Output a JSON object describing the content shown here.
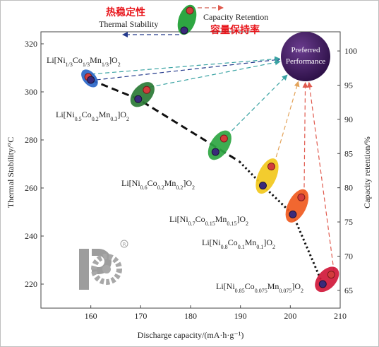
{
  "chart_data": {
    "type": "scatter",
    "xlabel": "Discharge capacity/(mA·h·g⁻¹)",
    "ylabel_left": "Thermal Stability/°C",
    "ylabel_right": "Capacity retention/%",
    "xlim": [
      150,
      210
    ],
    "ylim_left": [
      210,
      325
    ],
    "ylim_right": [
      62.4,
      102.8
    ],
    "x_ticks": [
      "160",
      "170",
      "180",
      "190",
      "200",
      "210"
    ],
    "y_left_ticks": [
      "220",
      "240",
      "260",
      "280",
      "300",
      "320"
    ],
    "y_right_ticks": [
      "65",
      "70",
      "75",
      "80",
      "85",
      "90",
      "95",
      "100"
    ],
    "legend": {
      "thermal_cn": "热稳定性",
      "thermal_en": "Thermal Stability",
      "capacity_en": "Capacity Retention",
      "capacity_cn": "容量保持率",
      "preferred_line1": "Preferred",
      "preferred_line2": "Performance"
    },
    "materials": [
      {
        "name": "Li[Ni1/3Co1/3Mn1/3]O2",
        "capacity": 160,
        "thermal_stability": 305,
        "capacity_retention": 96.2,
        "color": "#2a66c8",
        "label_parts": [
          [
            "Li[Ni",
            ""
          ],
          [
            "1/3",
            "s"
          ],
          [
            "Co",
            ""
          ],
          [
            "1/3",
            "s"
          ],
          [
            "Mn",
            ""
          ],
          [
            "1/3",
            "s"
          ],
          [
            "]O",
            ""
          ],
          [
            "2",
            "s"
          ]
        ]
      },
      {
        "name": "Li[Ni0.5Co0.2Mn0.3]O2",
        "capacity": 169.5,
        "thermal_stability": 297,
        "capacity_retention": 94.3,
        "color": "#2a7a35",
        "label_parts": [
          [
            "Li[Ni",
            ""
          ],
          [
            "0.5",
            "s"
          ],
          [
            "Co",
            ""
          ],
          [
            "0.2",
            "s"
          ],
          [
            "Mn",
            ""
          ],
          [
            "0.3",
            "s"
          ],
          [
            "]O",
            ""
          ],
          [
            "2",
            "s"
          ]
        ]
      },
      {
        "name": "Li[Ni0.6Co0.2Mn0.2]O2",
        "capacity": 185,
        "thermal_stability": 275,
        "capacity_retention": 87.2,
        "color": "#2ea642",
        "label_parts": [
          [
            "Li[Ni",
            ""
          ],
          [
            "0.6",
            "s"
          ],
          [
            "Co",
            ""
          ],
          [
            "0.2",
            "s"
          ],
          [
            "Mn",
            ""
          ],
          [
            "0.2",
            "s"
          ],
          [
            "]O",
            ""
          ],
          [
            "2",
            "s"
          ]
        ]
      },
      {
        "name": "Li[Ni0.7Co0.15Mn0.15]O2",
        "capacity": 194.5,
        "thermal_stability": 261,
        "capacity_retention": 83.1,
        "color": "#f2c81c",
        "label_parts": [
          [
            "Li[Ni",
            ""
          ],
          [
            "0.7",
            "s"
          ],
          [
            "Co",
            ""
          ],
          [
            "0.15",
            "s"
          ],
          [
            "Mn",
            ""
          ],
          [
            "0.15",
            "s"
          ],
          [
            "]O",
            ""
          ],
          [
            "2",
            "s"
          ]
        ]
      },
      {
        "name": "Li[Ni0.8Co0.1Mn0.1]O2",
        "capacity": 200.5,
        "thermal_stability": 249,
        "capacity_retention": 78.6,
        "color": "#f05a1e",
        "label_parts": [
          [
            "Li[Ni",
            ""
          ],
          [
            "0.8",
            "s"
          ],
          [
            "Co",
            ""
          ],
          [
            "0.1",
            "s"
          ],
          [
            "Mn",
            ""
          ],
          [
            "0.1",
            "s"
          ],
          [
            "]O",
            ""
          ],
          [
            "2",
            "s"
          ]
        ]
      },
      {
        "name": "Li[Ni0.85Co0.075Mn0.075]O2",
        "capacity": 206.5,
        "thermal_stability": 220,
        "capacity_retention": 67.3,
        "color": "#d0183a",
        "label_parts": [
          [
            "Li[Ni",
            ""
          ],
          [
            "0.85",
            "s"
          ],
          [
            "Co",
            ""
          ],
          [
            "0.075",
            "s"
          ],
          [
            "Mn",
            ""
          ],
          [
            "0.075",
            "s"
          ],
          [
            "]O",
            ""
          ],
          [
            "2",
            "s"
          ]
        ]
      }
    ]
  }
}
